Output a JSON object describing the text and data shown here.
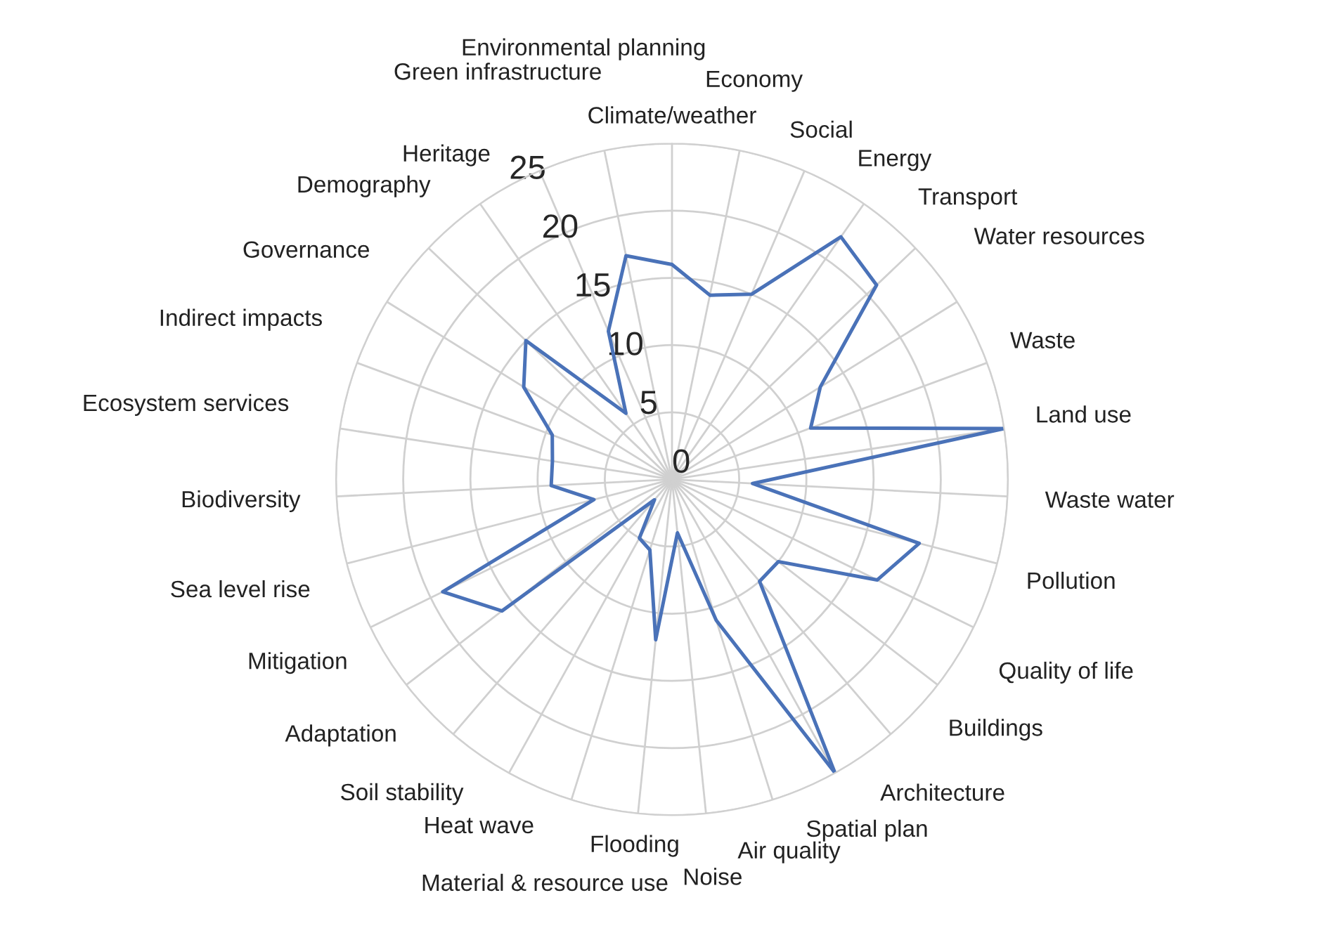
{
  "chart_data": {
    "type": "radar",
    "categories": [
      "Climate/weather",
      "Economy",
      "Social",
      "Energy",
      "Transport",
      "Water resources",
      "Waste",
      "Land use",
      "Waste water",
      "Pollution",
      "Quality of life",
      "Buildings",
      "Architecture",
      "Spatial plan",
      "Air quality",
      "Noise",
      "Flooding",
      "Material & resource use",
      "Heat wave",
      "Soil stability",
      "Adaptation",
      "Mitigation",
      "Sea level rise",
      "Biodiversity",
      "Ecosystem services",
      "Indirect impacts",
      "Governance",
      "Demography",
      "Heritage",
      "Green infrastructure",
      "Environmental planning"
    ],
    "series": [
      {
        "color": "#4a72b8",
        "values": [
          16,
          14,
          15,
          22,
          21,
          13,
          11,
          25,
          6,
          19,
          17,
          10,
          10,
          25,
          11,
          4,
          12,
          5.5,
          5,
          2,
          16,
          19,
          6,
          9,
          9,
          9.5,
          13,
          15,
          6,
          12,
          17
        ]
      }
    ],
    "ylim": [
      0,
      25
    ],
    "yticks": [
      0,
      5,
      10,
      15,
      20,
      25
    ],
    "grid": true,
    "legend": false,
    "marker": "none",
    "line_style": "solid"
  }
}
